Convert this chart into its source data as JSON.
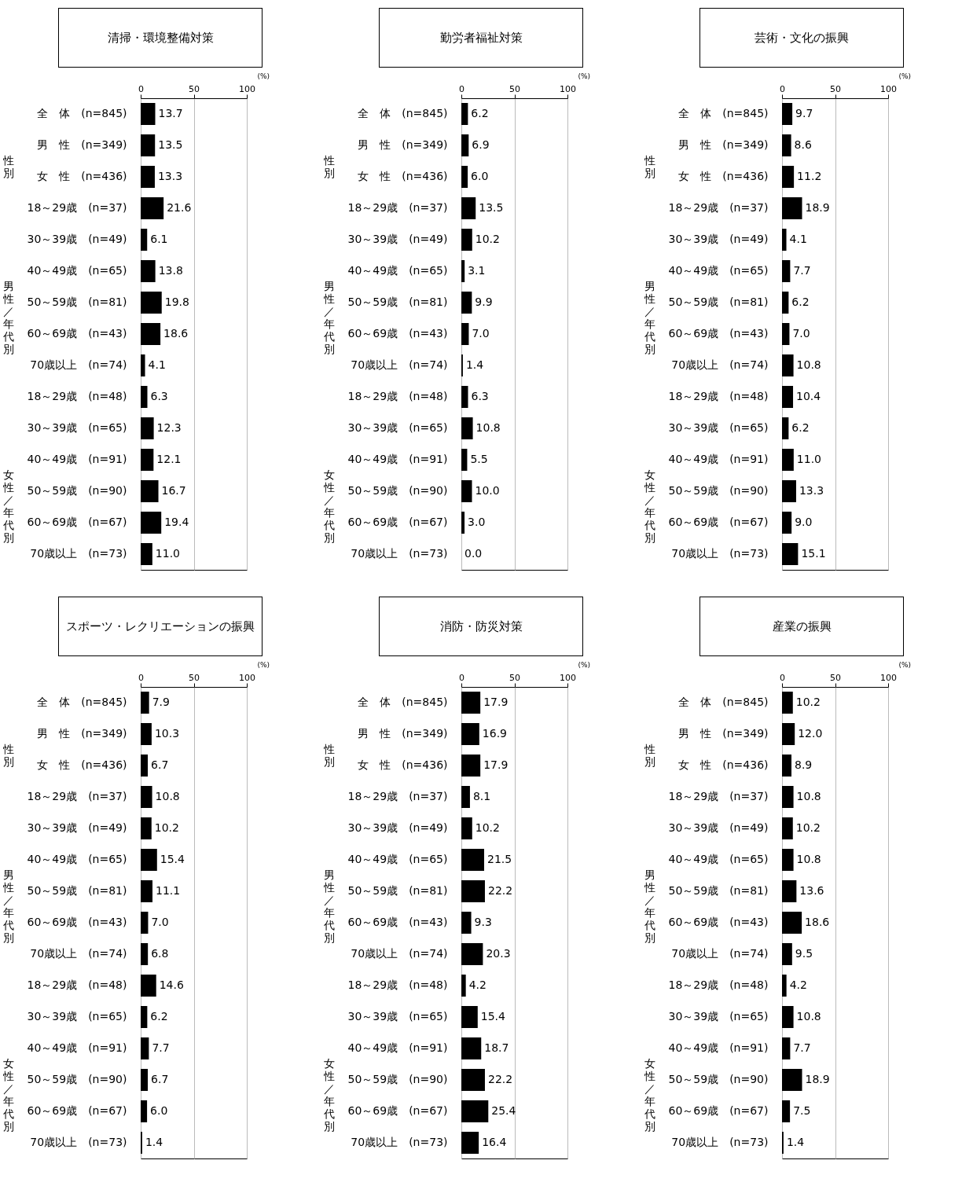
{
  "chart_data": [
    {
      "type": "bar",
      "orientation": "horizontal",
      "title": "清掃・環境整備対策",
      "xlabel": "(%)",
      "xlim": [
        0,
        100
      ],
      "xticks": [
        0,
        50,
        100
      ],
      "grid": "x",
      "color": "#000000",
      "annotations": [
        "性別",
        "男性／年代別",
        "女性／年代別"
      ],
      "categories": [
        "全　体　(n=845)",
        "男　性　(n=349)",
        "女　性　(n=436)",
        "18～29歳　(n=37)",
        "30～39歳　(n=49)",
        "40～49歳　(n=65)",
        "50～59歳　(n=81)",
        "60～69歳　(n=43)",
        "70歳以上　(n=74)",
        "18～29歳　(n=48)",
        "30～39歳　(n=65)",
        "40～49歳　(n=91)",
        "50～59歳　(n=90)",
        "60～69歳　(n=67)",
        "70歳以上　(n=73)"
      ],
      "values": [
        13.7,
        13.5,
        13.3,
        21.6,
        6.1,
        13.8,
        19.8,
        18.6,
        4.1,
        6.3,
        12.3,
        12.1,
        16.7,
        19.4,
        11.0
      ],
      "value_labels": [
        "13.7",
        "13.5",
        "13.3",
        "21.6",
        "6.1",
        "13.8",
        "19.8",
        "18.6",
        "4.1",
        "6.3",
        "12.3",
        "12.1",
        "16.7",
        "19.4",
        "11.0"
      ]
    },
    {
      "type": "bar",
      "orientation": "horizontal",
      "title": "勤労者福祉対策",
      "xlabel": "(%)",
      "xlim": [
        0,
        100
      ],
      "xticks": [
        0,
        50,
        100
      ],
      "grid": "x",
      "color": "#000000",
      "annotations": [
        "性別",
        "男性／年代別",
        "女性／年代別"
      ],
      "categories": [
        "全　体　(n=845)",
        "男　性　(n=349)",
        "女　性　(n=436)",
        "18～29歳　(n=37)",
        "30～39歳　(n=49)",
        "40～49歳　(n=65)",
        "50～59歳　(n=81)",
        "60～69歳　(n=43)",
        "70歳以上　(n=74)",
        "18～29歳　(n=48)",
        "30～39歳　(n=65)",
        "40～49歳　(n=91)",
        "50～59歳　(n=90)",
        "60～69歳　(n=67)",
        "70歳以上　(n=73)"
      ],
      "values": [
        6.2,
        6.9,
        6.0,
        13.5,
        10.2,
        3.1,
        9.9,
        7.0,
        1.4,
        6.3,
        10.8,
        5.5,
        10.0,
        3.0,
        0.0
      ],
      "value_labels": [
        "6.2",
        "6.9",
        "6.0",
        "13.5",
        "10.2",
        "3.1",
        "9.9",
        "7.0",
        "1.4",
        "6.3",
        "10.8",
        "5.5",
        "10.0",
        "3.0",
        "0.0"
      ]
    },
    {
      "type": "bar",
      "orientation": "horizontal",
      "title": "芸術・文化の振興",
      "xlabel": "(%)",
      "xlim": [
        0,
        100
      ],
      "xticks": [
        0,
        50,
        100
      ],
      "grid": "x",
      "color": "#000000",
      "annotations": [
        "性別",
        "男性／年代別",
        "女性／年代別"
      ],
      "categories": [
        "全　体　(n=845)",
        "男　性　(n=349)",
        "女　性　(n=436)",
        "18～29歳　(n=37)",
        "30～39歳　(n=49)",
        "40～49歳　(n=65)",
        "50～59歳　(n=81)",
        "60～69歳　(n=43)",
        "70歳以上　(n=74)",
        "18～29歳　(n=48)",
        "30～39歳　(n=65)",
        "40～49歳　(n=91)",
        "50～59歳　(n=90)",
        "60～69歳　(n=67)",
        "70歳以上　(n=73)"
      ],
      "values": [
        9.7,
        8.6,
        11.2,
        18.9,
        4.1,
        7.7,
        6.2,
        7.0,
        10.8,
        10.4,
        6.2,
        11.0,
        13.3,
        9.0,
        15.1
      ],
      "value_labels": [
        "9.7",
        "8.6",
        "11.2",
        "18.9",
        "4.1",
        "7.7",
        "6.2",
        "7.0",
        "10.8",
        "10.4",
        "6.2",
        "11.0",
        "13.3",
        "9.0",
        "15.1"
      ]
    },
    {
      "type": "bar",
      "orientation": "horizontal",
      "title": "スポーツ・レクリエーションの振興",
      "xlabel": "(%)",
      "xlim": [
        0,
        100
      ],
      "xticks": [
        0,
        50,
        100
      ],
      "grid": "x",
      "color": "#000000",
      "annotations": [
        "性別",
        "男性／年代別",
        "女性／年代別"
      ],
      "categories": [
        "全　体　(n=845)",
        "男　性　(n=349)",
        "女　性　(n=436)",
        "18～29歳　(n=37)",
        "30～39歳　(n=49)",
        "40～49歳　(n=65)",
        "50～59歳　(n=81)",
        "60～69歳　(n=43)",
        "70歳以上　(n=74)",
        "18～29歳　(n=48)",
        "30～39歳　(n=65)",
        "40～49歳　(n=91)",
        "50～59歳　(n=90)",
        "60～69歳　(n=67)",
        "70歳以上　(n=73)"
      ],
      "values": [
        7.9,
        10.3,
        6.7,
        10.8,
        10.2,
        15.4,
        11.1,
        7.0,
        6.8,
        14.6,
        6.2,
        7.7,
        6.7,
        6.0,
        1.4
      ],
      "value_labels": [
        "7.9",
        "10.3",
        "6.7",
        "10.8",
        "10.2",
        "15.4",
        "11.1",
        "7.0",
        "6.8",
        "14.6",
        "6.2",
        "7.7",
        "6.7",
        "6.0",
        "1.4"
      ]
    },
    {
      "type": "bar",
      "orientation": "horizontal",
      "title": "消防・防災対策",
      "xlabel": "(%)",
      "xlim": [
        0,
        100
      ],
      "xticks": [
        0,
        50,
        100
      ],
      "grid": "x",
      "color": "#000000",
      "annotations": [
        "性別",
        "男性／年代別",
        "女性／年代別"
      ],
      "categories": [
        "全　体　(n=845)",
        "男　性　(n=349)",
        "女　性　(n=436)",
        "18～29歳　(n=37)",
        "30～39歳　(n=49)",
        "40～49歳　(n=65)",
        "50～59歳　(n=81)",
        "60～69歳　(n=43)",
        "70歳以上　(n=74)",
        "18～29歳　(n=48)",
        "30～39歳　(n=65)",
        "40～49歳　(n=91)",
        "50～59歳　(n=90)",
        "60～69歳　(n=67)",
        "70歳以上　(n=73)"
      ],
      "values": [
        17.9,
        16.9,
        17.9,
        8.1,
        10.2,
        21.5,
        22.2,
        9.3,
        20.3,
        4.2,
        15.4,
        18.7,
        22.2,
        25.4,
        16.4
      ],
      "value_labels": [
        "17.9",
        "16.9",
        "17.9",
        "8.1",
        "10.2",
        "21.5",
        "22.2",
        "9.3",
        "20.3",
        "4.2",
        "15.4",
        "18.7",
        "22.2",
        "25.4",
        "16.4"
      ]
    },
    {
      "type": "bar",
      "orientation": "horizontal",
      "title": "産業の振興",
      "xlabel": "(%)",
      "xlim": [
        0,
        100
      ],
      "xticks": [
        0,
        50,
        100
      ],
      "grid": "x",
      "color": "#000000",
      "annotations": [
        "性別",
        "男性／年代別",
        "女性／年代別"
      ],
      "categories": [
        "全　体　(n=845)",
        "男　性　(n=349)",
        "女　性　(n=436)",
        "18～29歳　(n=37)",
        "30～39歳　(n=49)",
        "40～49歳　(n=65)",
        "50～59歳　(n=81)",
        "60～69歳　(n=43)",
        "70歳以上　(n=74)",
        "18～29歳　(n=48)",
        "30～39歳　(n=65)",
        "40～49歳　(n=91)",
        "50～59歳　(n=90)",
        "60～69歳　(n=67)",
        "70歳以上　(n=73)"
      ],
      "values": [
        10.2,
        12.0,
        8.9,
        10.8,
        10.2,
        10.8,
        13.6,
        18.6,
        9.5,
        4.2,
        10.8,
        7.7,
        18.9,
        7.5,
        1.4
      ],
      "value_labels": [
        "10.2",
        "12.0",
        "8.9",
        "10.8",
        "10.2",
        "10.8",
        "13.6",
        "18.6",
        "9.5",
        "4.2",
        "10.8",
        "7.7",
        "18.9",
        "7.5",
        "1.4"
      ]
    }
  ]
}
